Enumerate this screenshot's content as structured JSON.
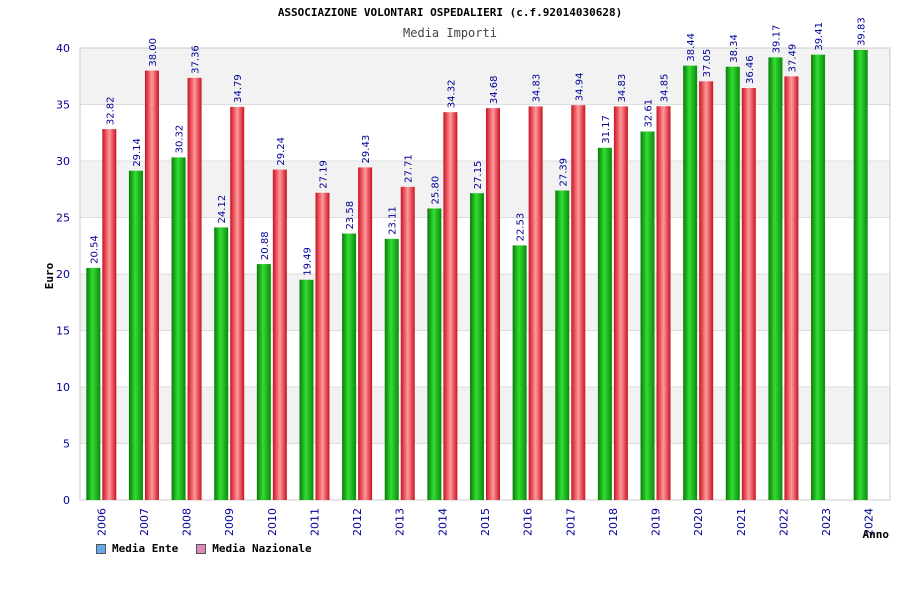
{
  "chart_data": {
    "type": "bar",
    "title": "ASSOCIAZIONE VOLONTARI OSPEDALIERI (c.f.92014030628)",
    "subtitle": "Media Importi",
    "xlabel": "Anno",
    "ylabel": "Euro",
    "ylim": [
      0,
      40
    ],
    "yticks": [
      "0",
      "5",
      "10",
      "15",
      "20",
      "25",
      "30",
      "35",
      "40"
    ],
    "categories": [
      "2006",
      "2007",
      "2008",
      "2009",
      "2010",
      "2011",
      "2012",
      "2013",
      "2014",
      "2015",
      "2016",
      "2017",
      "2018",
      "2019",
      "2020",
      "2021",
      "2022",
      "2023",
      "2024"
    ],
    "series": [
      {
        "name": "Media Ente",
        "values": [
          20.54,
          29.14,
          30.32,
          24.12,
          20.88,
          19.49,
          23.58,
          23.11,
          25.8,
          27.15,
          22.53,
          27.39,
          31.17,
          32.61,
          38.44,
          38.34,
          39.17,
          39.41,
          39.83
        ],
        "labels": [
          "20.54",
          "29.14",
          "30.32",
          "24.12",
          "20.88",
          "19.49",
          "23.58",
          "23.11",
          "25.80",
          "27.15",
          "22.53",
          "27.39",
          "31.17",
          "32.61",
          "38.44",
          "38.34",
          "39.17",
          "39.41",
          "39.83"
        ]
      },
      {
        "name": "Media Nazionale",
        "values": [
          32.82,
          38.0,
          37.36,
          34.79,
          29.24,
          27.19,
          29.43,
          27.71,
          34.32,
          34.68,
          34.83,
          34.94,
          34.83,
          34.85,
          37.05,
          36.46,
          37.49,
          null,
          null
        ],
        "labels": [
          "32.82",
          "38.00",
          "37.36",
          "34.79",
          "29.24",
          "27.19",
          "29.43",
          "27.71",
          "34.32",
          "34.68",
          "34.83",
          "34.94",
          "34.83",
          "34.85",
          "37.05",
          "36.46",
          "37.49",
          null,
          null
        ]
      }
    ],
    "legend_position": "bottom-left",
    "grid": true
  },
  "colors": {
    "ente_bar": "#22bb22",
    "nazionale_bar": "#ee3344",
    "ente_legend": "#66aaee",
    "nazionale_legend": "#dd88bb",
    "band": "#f2f2f2",
    "tick_text": "#000099"
  },
  "legend": {
    "ente_label": "Media Ente",
    "nazionale_label": "Media Nazionale"
  }
}
